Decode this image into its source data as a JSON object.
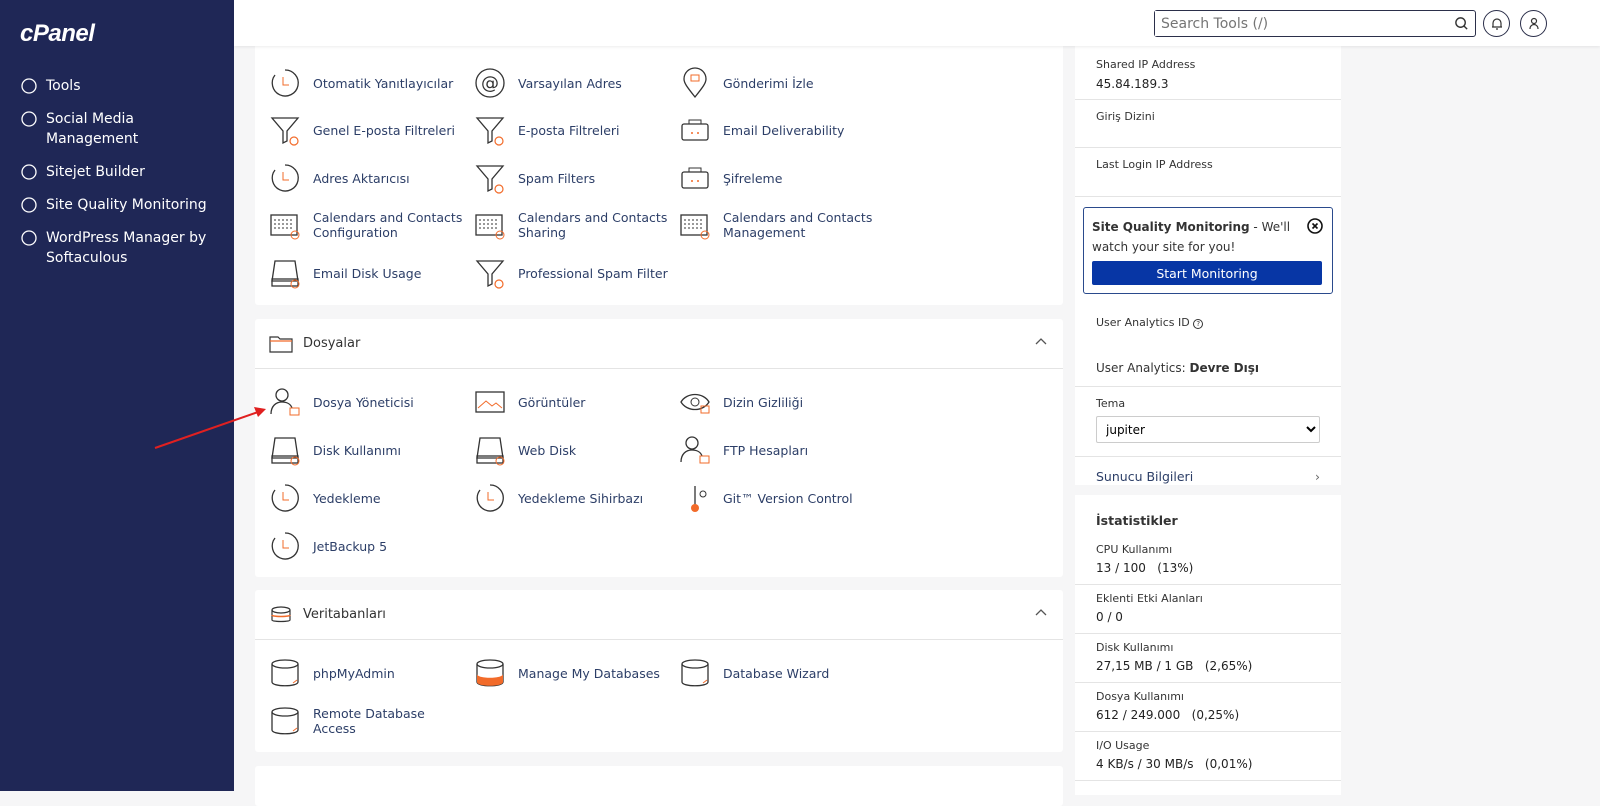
{
  "brand": "cPanel",
  "sidebar": {
    "items": [
      {
        "label": "Tools",
        "icon": "tools-icon"
      },
      {
        "label": "Social Media Management",
        "icon": "social-media-icon"
      },
      {
        "label": "Sitejet Builder",
        "icon": "sitejet-icon"
      },
      {
        "label": "Site Quality Monitoring",
        "icon": "magnifier-check-icon"
      },
      {
        "label": "WordPress Manager by Softaculous",
        "icon": "wordpress-icon"
      }
    ]
  },
  "header": {
    "search_placeholder": "Search Tools (/)"
  },
  "email": {
    "items": [
      {
        "label": "Otomatik Yanıtlayıcılar",
        "icon": "autoresponder-icon"
      },
      {
        "label": "Varsayılan Adres",
        "icon": "at-icon"
      },
      {
        "label": "Gönderimi İzle",
        "icon": "track-delivery-icon"
      },
      {
        "label": "Genel E-posta Filtreleri",
        "icon": "global-filter-icon"
      },
      {
        "label": "E-posta Filtreleri",
        "icon": "filter-icon"
      },
      {
        "label": "Email Deliverability",
        "icon": "mailbox-icon"
      },
      {
        "label": "Adres Aktarıcısı",
        "icon": "forwarder-icon"
      },
      {
        "label": "Spam Filters",
        "icon": "spam-filter-icon"
      },
      {
        "label": "Şifreleme",
        "icon": "encryption-icon"
      },
      {
        "label": "Calendars and Contacts Configuration",
        "icon": "calendar-config-icon"
      },
      {
        "label": "Calendars and Contacts Sharing",
        "icon": "calendar-sharing-icon"
      },
      {
        "label": "Calendars and Contacts Management",
        "icon": "calendar-management-icon"
      },
      {
        "label": "Email Disk Usage",
        "icon": "disk-icon"
      },
      {
        "label": "Professional Spam Filter",
        "icon": "pro-spam-filter-icon"
      }
    ]
  },
  "files": {
    "title": "Dosyalar",
    "items": [
      {
        "label": "Dosya Yöneticisi",
        "icon": "file-manager-icon"
      },
      {
        "label": "Görüntüler",
        "icon": "images-icon"
      },
      {
        "label": "Dizin Gizliliği",
        "icon": "directory-privacy-icon"
      },
      {
        "label": "Disk Kullanımı",
        "icon": "disk-icon"
      },
      {
        "label": "Web Disk",
        "icon": "web-disk-icon"
      },
      {
        "label": "FTP Hesapları",
        "icon": "ftp-icon"
      },
      {
        "label": "Yedekleme",
        "icon": "backup-icon"
      },
      {
        "label": "Yedekleme Sihirbazı",
        "icon": "backup-wizard-icon"
      },
      {
        "label": "Git™ Version Control",
        "icon": "git-icon"
      },
      {
        "label": "JetBackup 5",
        "icon": "jetbackup-icon"
      }
    ]
  },
  "databases": {
    "title": "Veritabanları",
    "items": [
      {
        "label": "phpMyAdmin",
        "icon": "phpmyadmin-icon"
      },
      {
        "label": "Manage My Databases",
        "icon": "database-icon"
      },
      {
        "label": "Database Wizard",
        "icon": "database-wizard-icon"
      },
      {
        "label": "Remote Database Access",
        "icon": "remote-database-icon"
      }
    ]
  },
  "info": {
    "shared_ip_label": "Shared IP Address",
    "shared_ip": "45.84.189.3",
    "home_dir_label": "Giriş Dizini",
    "last_login_label": "Last Login IP Address",
    "sqm_title": "Site Quality Monitoring",
    "sqm_text": " - We'll watch your site for you!",
    "sqm_button": "Start Monitoring",
    "analytics_label": "User Analytics ID",
    "analytics_status_label": "User Analytics: ",
    "analytics_status": "Devre Dışı",
    "theme_label": "Tema",
    "theme_value": "jupiter",
    "server_info": "Sunucu Bilgileri"
  },
  "stats": {
    "title": "İstatistikler",
    "rows": [
      {
        "label": "CPU Kullanımı",
        "value": "13 / 100   (13%)"
      },
      {
        "label": "Eklenti Etki Alanları",
        "value": "0 / 0"
      },
      {
        "label": "Disk Kullanımı",
        "value": "27,15 MB / 1 GB   (2,65%)"
      },
      {
        "label": "Dosya Kullanımı",
        "value": "612 / 249.000   (0,25%)"
      },
      {
        "label": "I/O Usage",
        "value": "4 KB/s / 30 MB/s   (0,01%)"
      }
    ]
  },
  "colors": {
    "sidebar": "#1f2756",
    "accent": "#0736a5",
    "icon_orange": "#f26b2a",
    "arrow": "#e02020"
  }
}
